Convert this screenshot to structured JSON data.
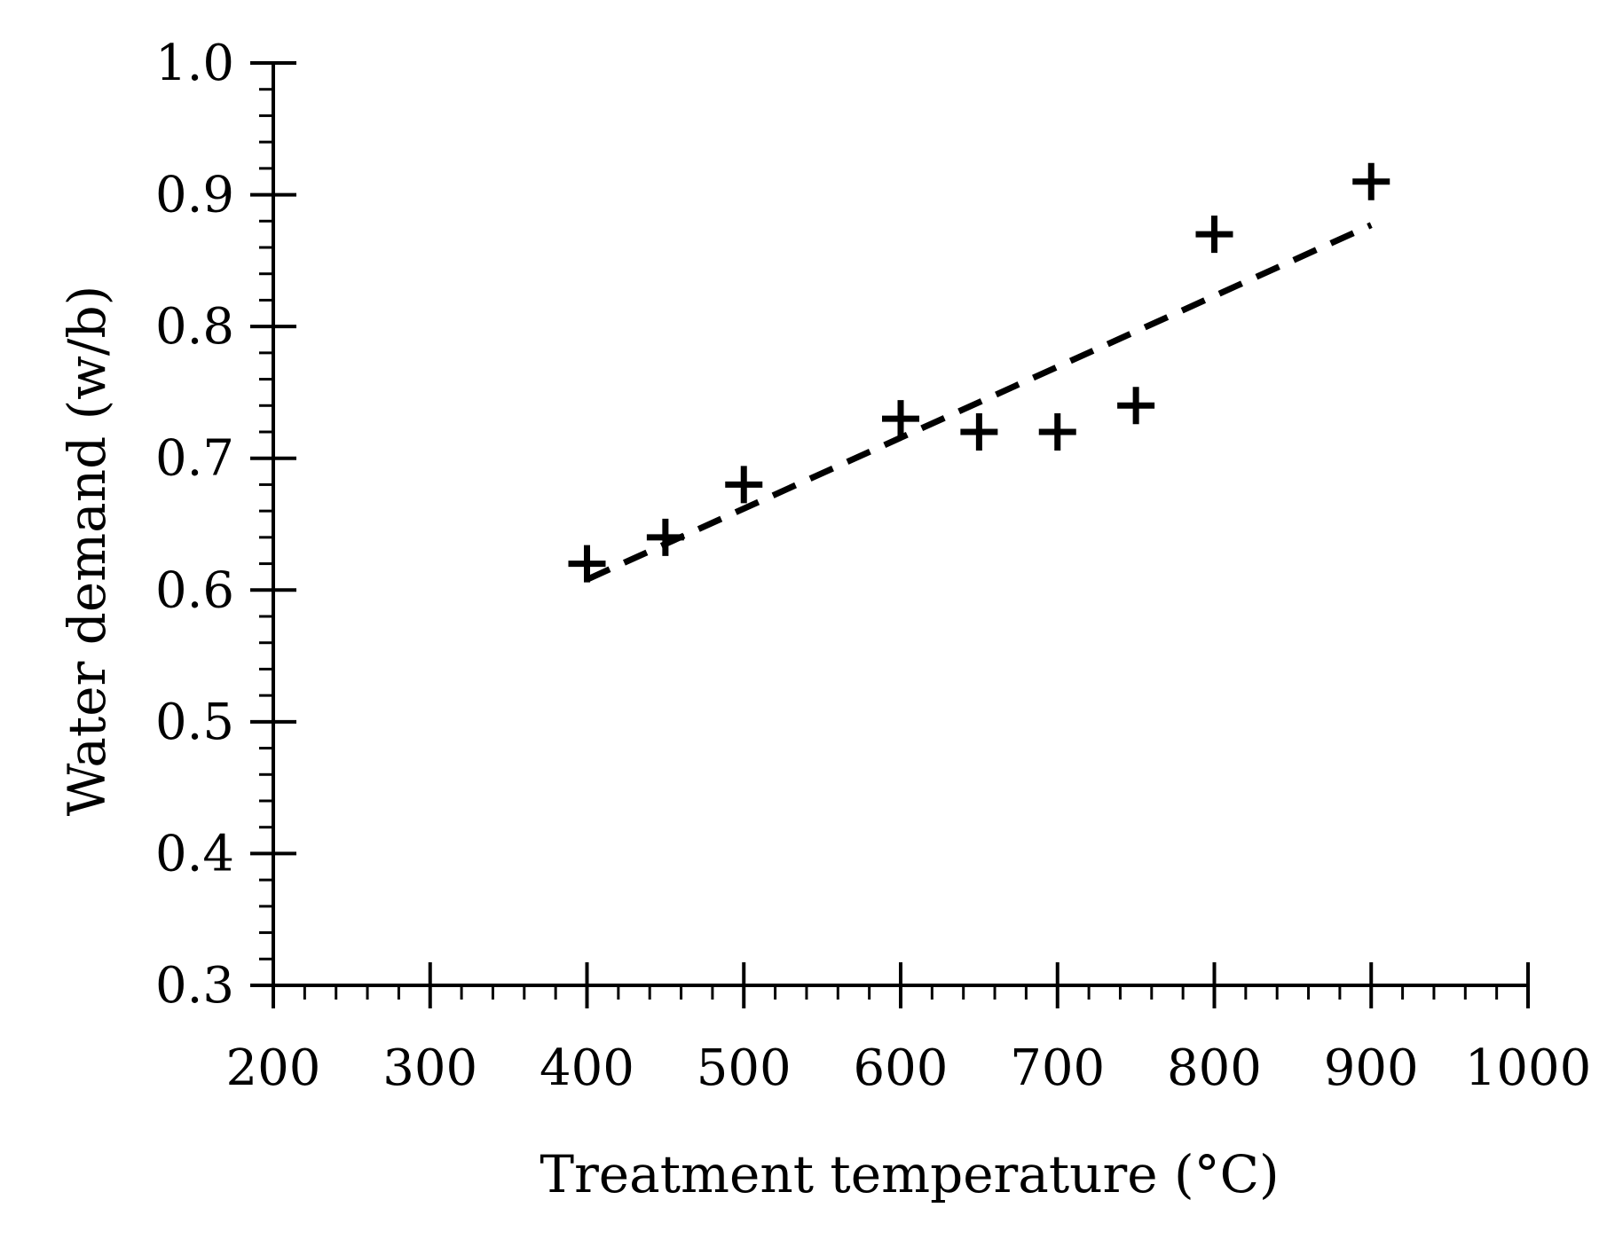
{
  "chart_data": {
    "type": "scatter",
    "title": "",
    "xlabel": "Treatment temperature (°C)",
    "ylabel": "Water demand (w/b)",
    "xlim": [
      200,
      1000
    ],
    "ylim": [
      0.3,
      1.0
    ],
    "x_ticks": [
      200,
      300,
      400,
      500,
      600,
      700,
      800,
      900,
      1000
    ],
    "x_tick_labels": [
      "200",
      "300",
      "400",
      "500",
      "600",
      "700",
      "800",
      "900",
      "1000"
    ],
    "y_ticks": [
      0.3,
      0.4,
      0.5,
      0.6,
      0.7,
      0.8,
      0.9,
      1.0
    ],
    "y_tick_labels": [
      "0.3",
      "0.4",
      "0.5",
      "0.6",
      "0.7",
      "0.8",
      "0.9",
      "1.0"
    ],
    "x_minor_step": 20,
    "y_minor_step": 0.02,
    "grid": false,
    "series": [
      {
        "name": "Water demand",
        "marker": "plus",
        "color": "#000000",
        "x": [
          400,
          450,
          500,
          600,
          650,
          700,
          750,
          800,
          900
        ],
        "y": [
          0.62,
          0.64,
          0.68,
          0.73,
          0.72,
          0.72,
          0.74,
          0.87,
          0.91
        ]
      }
    ],
    "trendline": {
      "type": "linear",
      "style": "dashed",
      "color": "#000000",
      "x": [
        400,
        900
      ],
      "y": [
        0.608,
        0.877
      ]
    }
  }
}
